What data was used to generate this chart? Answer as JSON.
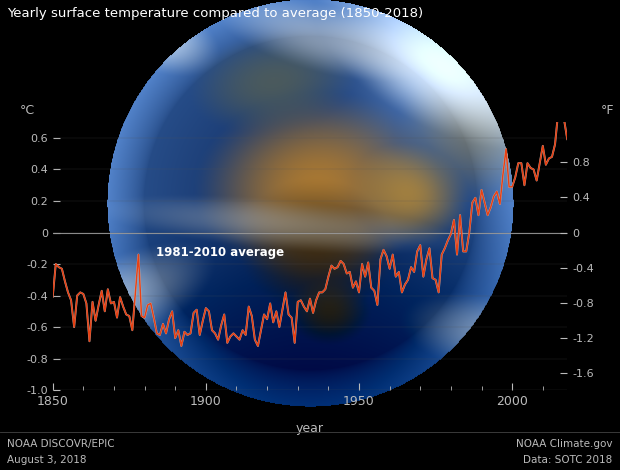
{
  "title": "Yearly surface temperature compared to average (1850-2018)",
  "xlabel": "year",
  "ylabel_left": "°C",
  "ylabel_right": "°F",
  "annotation": "1981-2010 average",
  "footer_left_1": "NOAA DISCOVR/EPIC",
  "footer_left_2": "August 3, 2018",
  "footer_right_1": "NOAA Climate.gov",
  "footer_right_2": "Data: SOTC 2018",
  "xlim": [
    1850,
    2018
  ],
  "ylim_C": [
    -1.0,
    0.7
  ],
  "yticks_C": [
    -1.0,
    -0.8,
    -0.6,
    -0.4,
    -0.2,
    0,
    0.2,
    0.4,
    0.6
  ],
  "yticks_F": [
    -1.6,
    -1.2,
    -0.8,
    -0.4,
    0,
    0.4,
    0.8
  ],
  "xticks": [
    1850,
    1900,
    1950,
    2000
  ],
  "bg_color": "#000000",
  "text_color": "#bbbbbb",
  "title_color": "#ffffff",
  "line_color_red": "#ee3300",
  "line_color_white": "#cccccc",
  "zero_line_color": "#999999",
  "years": [
    1850,
    1851,
    1852,
    1853,
    1854,
    1855,
    1856,
    1857,
    1858,
    1859,
    1860,
    1861,
    1862,
    1863,
    1864,
    1865,
    1866,
    1867,
    1868,
    1869,
    1870,
    1871,
    1872,
    1873,
    1874,
    1875,
    1876,
    1877,
    1878,
    1879,
    1880,
    1881,
    1882,
    1883,
    1884,
    1885,
    1886,
    1887,
    1888,
    1889,
    1890,
    1891,
    1892,
    1893,
    1894,
    1895,
    1896,
    1897,
    1898,
    1899,
    1900,
    1901,
    1902,
    1903,
    1904,
    1905,
    1906,
    1907,
    1908,
    1909,
    1910,
    1911,
    1912,
    1913,
    1914,
    1915,
    1916,
    1917,
    1918,
    1919,
    1920,
    1921,
    1922,
    1923,
    1924,
    1925,
    1926,
    1927,
    1928,
    1929,
    1930,
    1931,
    1932,
    1933,
    1934,
    1935,
    1936,
    1937,
    1938,
    1939,
    1940,
    1941,
    1942,
    1943,
    1944,
    1945,
    1946,
    1947,
    1948,
    1949,
    1950,
    1951,
    1952,
    1953,
    1954,
    1955,
    1956,
    1957,
    1958,
    1959,
    1960,
    1961,
    1962,
    1963,
    1964,
    1965,
    1966,
    1967,
    1968,
    1969,
    1970,
    1971,
    1972,
    1973,
    1974,
    1975,
    1976,
    1977,
    1978,
    1979,
    1980,
    1981,
    1982,
    1983,
    1984,
    1985,
    1986,
    1987,
    1988,
    1989,
    1990,
    1991,
    1992,
    1993,
    1994,
    1995,
    1996,
    1997,
    1998,
    1999,
    2000,
    2001,
    2002,
    2003,
    2004,
    2005,
    2006,
    2007,
    2008,
    2009,
    2010,
    2011,
    2012,
    2013,
    2014,
    2015,
    2016,
    2017,
    2018
  ],
  "temps_C": [
    -0.41,
    -0.2,
    -0.22,
    -0.23,
    -0.31,
    -0.38,
    -0.43,
    -0.6,
    -0.4,
    -0.38,
    -0.39,
    -0.45,
    -0.69,
    -0.44,
    -0.56,
    -0.46,
    -0.37,
    -0.5,
    -0.36,
    -0.45,
    -0.44,
    -0.54,
    -0.41,
    -0.47,
    -0.52,
    -0.53,
    -0.62,
    -0.38,
    -0.14,
    -0.53,
    -0.54,
    -0.46,
    -0.45,
    -0.54,
    -0.64,
    -0.65,
    -0.58,
    -0.64,
    -0.55,
    -0.5,
    -0.67,
    -0.62,
    -0.72,
    -0.63,
    -0.65,
    -0.64,
    -0.51,
    -0.49,
    -0.65,
    -0.56,
    -0.48,
    -0.5,
    -0.62,
    -0.64,
    -0.68,
    -0.59,
    -0.52,
    -0.7,
    -0.66,
    -0.64,
    -0.66,
    -0.68,
    -0.62,
    -0.65,
    -0.47,
    -0.53,
    -0.68,
    -0.72,
    -0.62,
    -0.52,
    -0.55,
    -0.45,
    -0.57,
    -0.5,
    -0.6,
    -0.49,
    -0.38,
    -0.52,
    -0.54,
    -0.7,
    -0.44,
    -0.43,
    -0.47,
    -0.5,
    -0.42,
    -0.51,
    -0.43,
    -0.38,
    -0.38,
    -0.36,
    -0.28,
    -0.21,
    -0.23,
    -0.22,
    -0.18,
    -0.2,
    -0.26,
    -0.25,
    -0.35,
    -0.31,
    -0.38,
    -0.2,
    -0.28,
    -0.19,
    -0.35,
    -0.37,
    -0.46,
    -0.17,
    -0.11,
    -0.15,
    -0.23,
    -0.14,
    -0.28,
    -0.25,
    -0.38,
    -0.33,
    -0.3,
    -0.22,
    -0.25,
    -0.12,
    -0.08,
    -0.28,
    -0.17,
    -0.1,
    -0.29,
    -0.3,
    -0.38,
    -0.14,
    -0.1,
    -0.05,
    -0.01,
    0.08,
    -0.14,
    0.11,
    -0.12,
    -0.12,
    0.0,
    0.19,
    0.22,
    0.11,
    0.27,
    0.19,
    0.11,
    0.16,
    0.23,
    0.26,
    0.18,
    0.37,
    0.53,
    0.29,
    0.29,
    0.35,
    0.44,
    0.44,
    0.3,
    0.44,
    0.41,
    0.4,
    0.33,
    0.44,
    0.55,
    0.43,
    0.47,
    0.48,
    0.56,
    0.76,
    0.86,
    0.71,
    0.59
  ]
}
